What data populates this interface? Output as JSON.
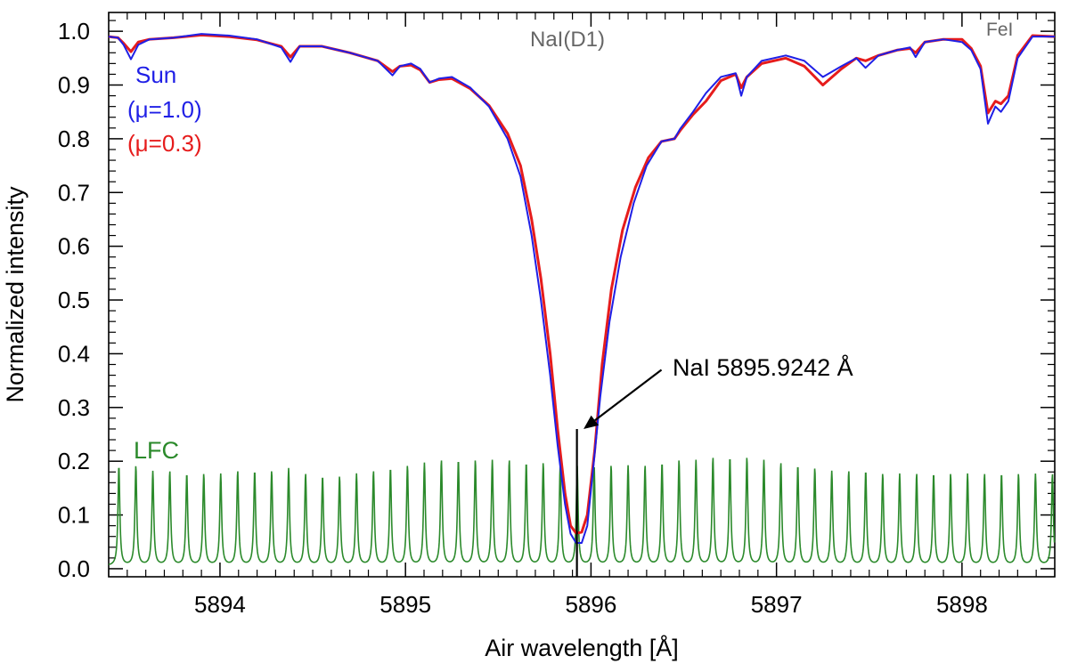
{
  "chart_data": {
    "type": "line",
    "title": "",
    "xlabel": "Air wavelength [Å]",
    "ylabel": "Normalized intensity",
    "xlim": [
      5893.4,
      5898.5
    ],
    "ylim": [
      -0.015,
      1.035
    ],
    "x_ticks": [
      5894,
      5895,
      5896,
      5897,
      5898
    ],
    "x_tick_labels": [
      "5894",
      "5895",
      "5896",
      "5897",
      "5898"
    ],
    "y_ticks": [
      0.0,
      0.1,
      0.2,
      0.3,
      0.4,
      0.5,
      0.6,
      0.7,
      0.8,
      0.9,
      1.0
    ],
    "y_tick_labels": [
      "0.0",
      "0.1",
      "0.2",
      "0.3",
      "0.4",
      "0.5",
      "0.6",
      "0.7",
      "0.8",
      "0.9",
      "1.0"
    ],
    "legend": [
      {
        "label": "Sun",
        "color": "#1f1fe6"
      },
      {
        "label": "(μ=1.0)",
        "color": "#1f1fe6"
      },
      {
        "label": "(μ=0.3)",
        "color": "#e61c1c"
      }
    ],
    "annotations": {
      "na_d1_label": "NaI(D1)",
      "fe_label": "FeI",
      "line_label": "NaI 5895.9242 Å",
      "line_wavelength": 5895.9242,
      "line_top": 0.26,
      "arrow_tip": [
        5895.96,
        0.26
      ],
      "arrow_tail": [
        5896.38,
        0.37
      ],
      "lfc_label": "LFC"
    },
    "series": [
      {
        "name": "Sun μ=1.0",
        "color": "#1f1fe6",
        "points": [
          [
            5893.4,
            0.99
          ],
          [
            5893.45,
            0.988
          ],
          [
            5893.48,
            0.975
          ],
          [
            5893.52,
            0.948
          ],
          [
            5893.56,
            0.975
          ],
          [
            5893.62,
            0.985
          ],
          [
            5893.75,
            0.988
          ],
          [
            5893.9,
            0.995
          ],
          [
            5894.05,
            0.992
          ],
          [
            5894.2,
            0.985
          ],
          [
            5894.33,
            0.97
          ],
          [
            5894.38,
            0.943
          ],
          [
            5894.43,
            0.972
          ],
          [
            5894.55,
            0.972
          ],
          [
            5894.7,
            0.96
          ],
          [
            5894.85,
            0.945
          ],
          [
            5894.93,
            0.918
          ],
          [
            5894.97,
            0.935
          ],
          [
            5895.03,
            0.94
          ],
          [
            5895.08,
            0.93
          ],
          [
            5895.13,
            0.905
          ],
          [
            5895.18,
            0.912
          ],
          [
            5895.25,
            0.915
          ],
          [
            5895.35,
            0.895
          ],
          [
            5895.45,
            0.86
          ],
          [
            5895.55,
            0.8
          ],
          [
            5895.62,
            0.73
          ],
          [
            5895.68,
            0.62
          ],
          [
            5895.73,
            0.5
          ],
          [
            5895.78,
            0.36
          ],
          [
            5895.82,
            0.23
          ],
          [
            5895.86,
            0.12
          ],
          [
            5895.89,
            0.065
          ],
          [
            5895.92,
            0.048
          ],
          [
            5895.95,
            0.048
          ],
          [
            5895.98,
            0.08
          ],
          [
            5896.01,
            0.18
          ],
          [
            5896.05,
            0.32
          ],
          [
            5896.1,
            0.46
          ],
          [
            5896.16,
            0.58
          ],
          [
            5896.23,
            0.68
          ],
          [
            5896.3,
            0.75
          ],
          [
            5896.38,
            0.795
          ],
          [
            5896.45,
            0.8
          ],
          [
            5896.48,
            0.818
          ],
          [
            5896.55,
            0.85
          ],
          [
            5896.62,
            0.885
          ],
          [
            5896.7,
            0.915
          ],
          [
            5896.78,
            0.922
          ],
          [
            5896.81,
            0.88
          ],
          [
            5896.84,
            0.915
          ],
          [
            5896.92,
            0.945
          ],
          [
            5897.05,
            0.955
          ],
          [
            5897.15,
            0.945
          ],
          [
            5897.25,
            0.915
          ],
          [
            5897.35,
            0.935
          ],
          [
            5897.43,
            0.95
          ],
          [
            5897.48,
            0.932
          ],
          [
            5897.55,
            0.955
          ],
          [
            5897.65,
            0.965
          ],
          [
            5897.72,
            0.97
          ],
          [
            5897.75,
            0.952
          ],
          [
            5897.8,
            0.98
          ],
          [
            5897.9,
            0.985
          ],
          [
            5898.0,
            0.98
          ],
          [
            5898.05,
            0.965
          ],
          [
            5898.1,
            0.93
          ],
          [
            5898.14,
            0.828
          ],
          [
            5898.18,
            0.86
          ],
          [
            5898.21,
            0.85
          ],
          [
            5898.25,
            0.87
          ],
          [
            5898.3,
            0.95
          ],
          [
            5898.38,
            0.99
          ],
          [
            5898.5,
            0.99
          ]
        ]
      },
      {
        "name": "Sun μ=0.3",
        "color": "#e61c1c",
        "points": [
          [
            5893.4,
            0.99
          ],
          [
            5893.45,
            0.988
          ],
          [
            5893.48,
            0.978
          ],
          [
            5893.52,
            0.962
          ],
          [
            5893.56,
            0.98
          ],
          [
            5893.62,
            0.985
          ],
          [
            5893.75,
            0.988
          ],
          [
            5893.9,
            0.993
          ],
          [
            5894.05,
            0.99
          ],
          [
            5894.2,
            0.984
          ],
          [
            5894.33,
            0.972
          ],
          [
            5894.38,
            0.952
          ],
          [
            5894.43,
            0.972
          ],
          [
            5894.55,
            0.972
          ],
          [
            5894.7,
            0.96
          ],
          [
            5894.85,
            0.945
          ],
          [
            5894.93,
            0.925
          ],
          [
            5894.97,
            0.935
          ],
          [
            5895.03,
            0.937
          ],
          [
            5895.08,
            0.928
          ],
          [
            5895.13,
            0.905
          ],
          [
            5895.18,
            0.91
          ],
          [
            5895.25,
            0.912
          ],
          [
            5895.35,
            0.893
          ],
          [
            5895.45,
            0.862
          ],
          [
            5895.55,
            0.81
          ],
          [
            5895.62,
            0.75
          ],
          [
            5895.68,
            0.65
          ],
          [
            5895.73,
            0.54
          ],
          [
            5895.78,
            0.4
          ],
          [
            5895.82,
            0.26
          ],
          [
            5895.86,
            0.14
          ],
          [
            5895.89,
            0.08
          ],
          [
            5895.92,
            0.066
          ],
          [
            5895.95,
            0.068
          ],
          [
            5895.98,
            0.1
          ],
          [
            5896.02,
            0.22
          ],
          [
            5896.06,
            0.38
          ],
          [
            5896.11,
            0.52
          ],
          [
            5896.17,
            0.63
          ],
          [
            5896.24,
            0.71
          ],
          [
            5896.31,
            0.765
          ],
          [
            5896.38,
            0.795
          ],
          [
            5896.45,
            0.8
          ],
          [
            5896.48,
            0.815
          ],
          [
            5896.55,
            0.845
          ],
          [
            5896.62,
            0.87
          ],
          [
            5896.7,
            0.908
          ],
          [
            5896.78,
            0.92
          ],
          [
            5896.81,
            0.895
          ],
          [
            5896.84,
            0.915
          ],
          [
            5896.92,
            0.94
          ],
          [
            5897.05,
            0.95
          ],
          [
            5897.15,
            0.935
          ],
          [
            5897.25,
            0.9
          ],
          [
            5897.35,
            0.93
          ],
          [
            5897.43,
            0.95
          ],
          [
            5897.48,
            0.945
          ],
          [
            5897.55,
            0.955
          ],
          [
            5897.65,
            0.965
          ],
          [
            5897.72,
            0.968
          ],
          [
            5897.75,
            0.96
          ],
          [
            5897.8,
            0.98
          ],
          [
            5897.9,
            0.985
          ],
          [
            5898.0,
            0.985
          ],
          [
            5898.05,
            0.968
          ],
          [
            5898.1,
            0.935
          ],
          [
            5898.14,
            0.848
          ],
          [
            5898.18,
            0.87
          ],
          [
            5898.21,
            0.865
          ],
          [
            5898.25,
            0.88
          ],
          [
            5898.3,
            0.955
          ],
          [
            5898.38,
            0.992
          ],
          [
            5898.5,
            0.99
          ]
        ]
      },
      {
        "name": "LFC",
        "color": "#2b8a2b",
        "type": "comb",
        "start": 5893.455,
        "spacing": 0.0915,
        "baseline": 0.005,
        "width": 0.006,
        "peaks": [
          0.19,
          0.19,
          0.18,
          0.18,
          0.175,
          0.175,
          0.175,
          0.18,
          0.18,
          0.18,
          0.185,
          0.175,
          0.17,
          0.17,
          0.175,
          0.18,
          0.185,
          0.19,
          0.195,
          0.2,
          0.2,
          0.2,
          0.2,
          0.2,
          0.195,
          0.195,
          0.19,
          0.19,
          0.19,
          0.19,
          0.19,
          0.19,
          0.195,
          0.2,
          0.2,
          0.205,
          0.205,
          0.205,
          0.2,
          0.195,
          0.19,
          0.185,
          0.18,
          0.18,
          0.18,
          0.175,
          0.175,
          0.175,
          0.175,
          0.175,
          0.175,
          0.175,
          0.175,
          0.175,
          0.175,
          0.175,
          0.175
        ]
      }
    ]
  }
}
